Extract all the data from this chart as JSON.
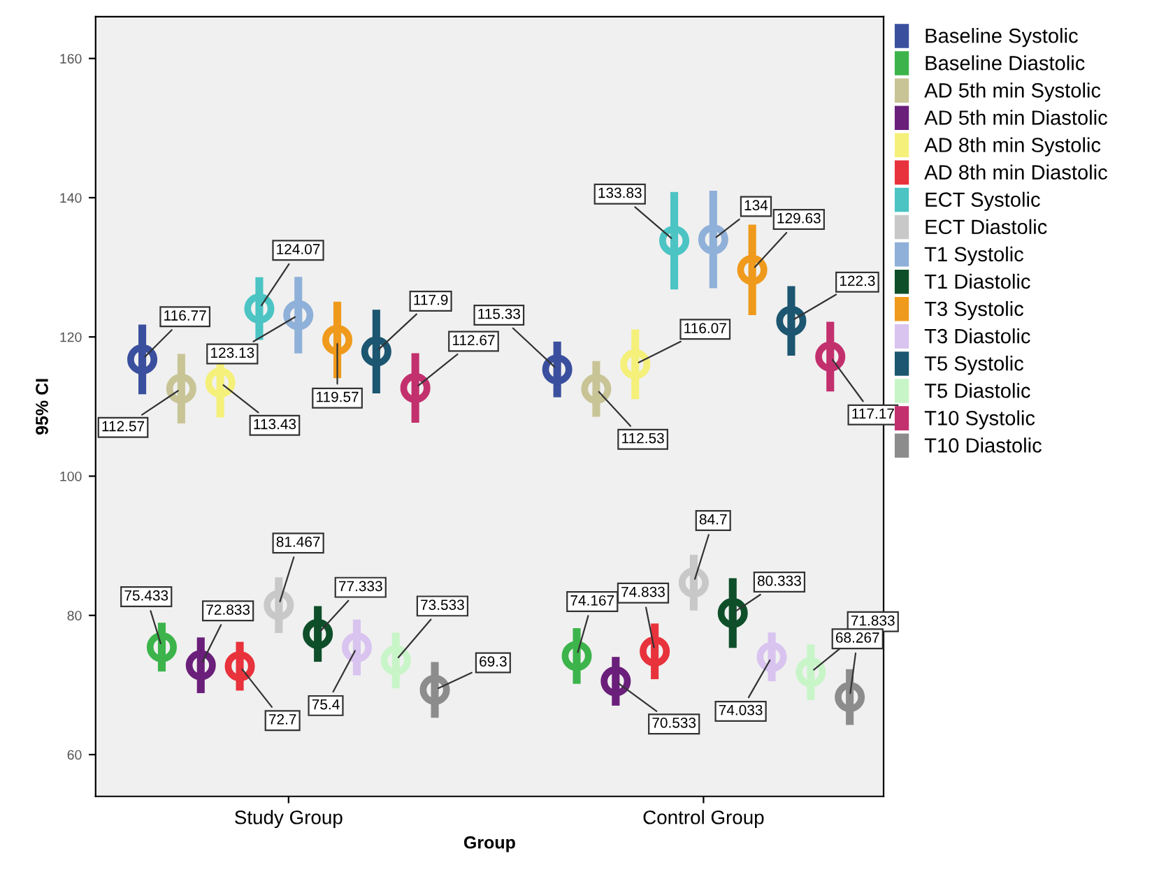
{
  "chart_data": {
    "type": "scatter",
    "xlabel": "Group",
    "ylabel": "95% CI",
    "categories": [
      "Study Group",
      "Control Group"
    ],
    "ylim": [
      54,
      166
    ],
    "yticks": [
      60,
      80,
      100,
      120,
      140,
      160
    ],
    "grid": false,
    "legend": "right",
    "marker": "circle",
    "data_labels": true,
    "series": [
      {
        "name": "Baseline Systolic",
        "color": "#3a4f9e",
        "values": [
          116.77,
          115.33
        ],
        "errors": [
          5,
          4
        ]
      },
      {
        "name": "Baseline Diastolic",
        "color": "#3cb44b",
        "values": [
          75.433,
          74.167
        ],
        "errors": [
          3.5,
          4
        ]
      },
      {
        "name": "AD 5th min Systolic",
        "color": "#c8c496",
        "values": [
          112.57,
          112.53
        ],
        "errors": [
          5,
          4
        ]
      },
      {
        "name": "AD 5th min Diastolic",
        "color": "#6a1f7a",
        "values": [
          72.833,
          70.533
        ],
        "errors": [
          4,
          3.5
        ]
      },
      {
        "name": "AD 8th min Systolic",
        "color": "#f5f07a",
        "values": [
          113.43,
          116.07
        ],
        "errors": [
          5,
          5
        ]
      },
      {
        "name": "AD 8th min Diastolic",
        "color": "#e8323c",
        "values": [
          72.7,
          74.833
        ],
        "errors": [
          3.5,
          4
        ]
      },
      {
        "name": "ECT Systolic",
        "color": "#4cc4c4",
        "values": [
          124.07,
          133.83
        ],
        "errors": [
          4.5,
          7
        ]
      },
      {
        "name": "ECT Diastolic",
        "color": "#c8c8c8",
        "values": [
          81.467,
          84.7
        ],
        "errors": [
          4,
          4
        ]
      },
      {
        "name": "T1 Systolic",
        "color": "#8fb0d8",
        "values": [
          123.13,
          134
        ],
        "errors": [
          5.5,
          7
        ]
      },
      {
        "name": "T1 Diastolic",
        "color": "#0e4f2a",
        "values": [
          77.333,
          80.333
        ],
        "errors": [
          4,
          5
        ]
      },
      {
        "name": "T3 Systolic",
        "color": "#ef9a1c",
        "values": [
          119.57,
          129.63
        ],
        "errors": [
          5.5,
          6.5
        ]
      },
      {
        "name": "T3 Diastolic",
        "color": "#d9c3ef",
        "values": [
          75.4,
          74.033
        ],
        "errors": [
          4,
          3.5
        ]
      },
      {
        "name": "T5 Systolic",
        "color": "#1c5670",
        "values": [
          117.9,
          122.3
        ],
        "errors": [
          6,
          5
        ]
      },
      {
        "name": "T5 Diastolic",
        "color": "#c8f5c8",
        "values": [
          73.533,
          71.833
        ],
        "errors": [
          4,
          4
        ]
      },
      {
        "name": "T10 Systolic",
        "color": "#c3306e",
        "values": [
          112.67,
          117.17
        ],
        "errors": [
          5,
          5
        ]
      },
      {
        "name": "T10 Diastolic",
        "color": "#8c8c8c",
        "values": [
          69.3,
          68.267
        ],
        "errors": [
          4,
          4
        ]
      }
    ]
  }
}
